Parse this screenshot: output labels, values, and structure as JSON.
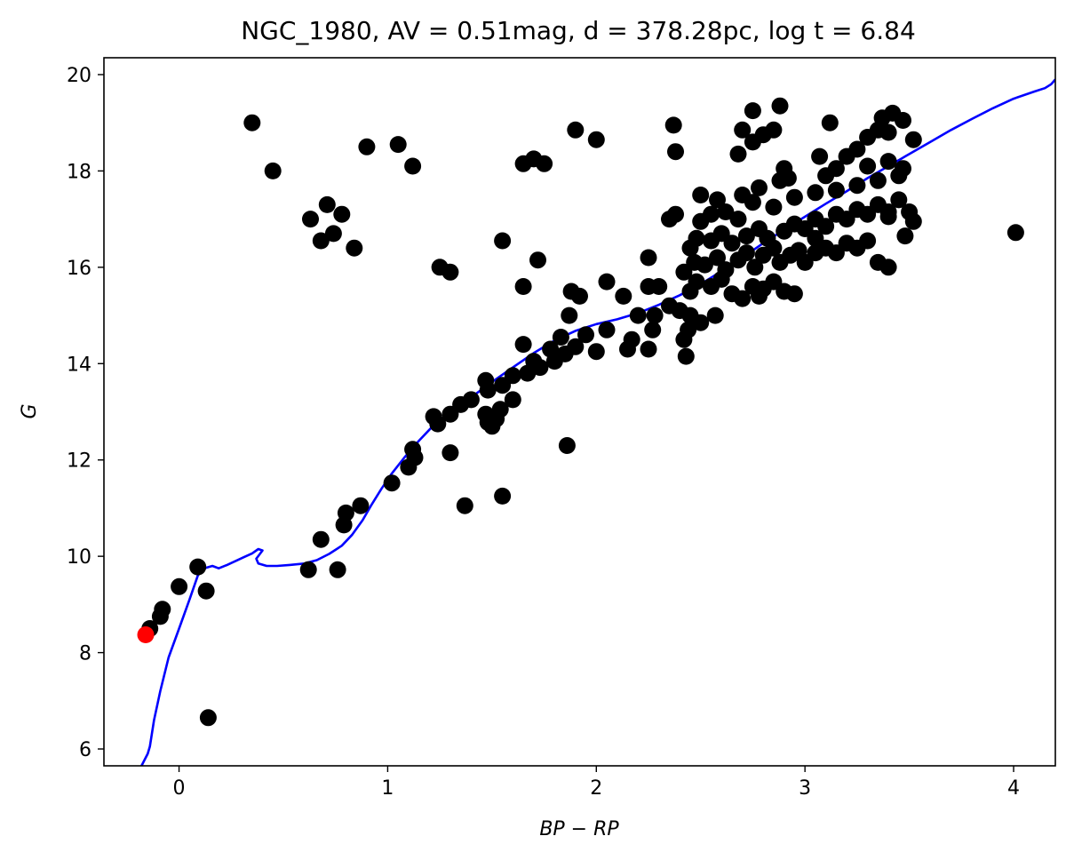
{
  "chart_data": {
    "type": "scatter",
    "title": "NGC_1980, AV = 0.51mag, d = 378.28pc, log t = 6.84",
    "xlabel": "BP − RP",
    "ylabel": "G",
    "xlim": [
      -0.36,
      4.2
    ],
    "ylim": [
      20.35,
      5.65
    ],
    "y_inverted": true,
    "grid": false,
    "x_ticks": [
      0,
      1,
      2,
      3,
      4
    ],
    "x_tick_labels": [
      "0",
      "1",
      "2",
      "3",
      "4"
    ],
    "y_ticks": [
      6,
      8,
      10,
      12,
      14,
      16,
      18,
      20
    ],
    "y_tick_labels": [
      "6",
      "8",
      "10",
      "12",
      "14",
      "16",
      "18",
      "20"
    ],
    "colors": {
      "members": "#000000",
      "highlight": "#ff0000",
      "isochrone": "#0000ff"
    },
    "highlight_point": {
      "x": -0.16,
      "y": 8.37
    },
    "isochrone": {
      "x": [
        -0.18,
        -0.15,
        -0.14,
        -0.12,
        -0.09,
        -0.05,
        0.0,
        0.05,
        0.09,
        0.12,
        0.16,
        0.19,
        0.23,
        0.27,
        0.31,
        0.35,
        0.38,
        0.4,
        0.37,
        0.38,
        0.42,
        0.47,
        0.53,
        0.6,
        0.66,
        0.72,
        0.78,
        0.83,
        0.88,
        0.92,
        0.97,
        1.02,
        1.08,
        1.15,
        1.22,
        1.3,
        1.4,
        1.5,
        1.6,
        1.7,
        1.8,
        1.9,
        2.0,
        2.1,
        2.2,
        2.3,
        2.4,
        2.5,
        2.6,
        2.7,
        2.8,
        2.9,
        3.0,
        3.1,
        3.2,
        3.3,
        3.4,
        3.5,
        3.6,
        3.7,
        3.8,
        3.9,
        4.0,
        4.1,
        4.15,
        4.18,
        4.19,
        4.2
      ],
      "y": [
        5.65,
        5.9,
        6.05,
        6.6,
        7.2,
        7.9,
        8.5,
        9.1,
        9.6,
        9.75,
        9.8,
        9.75,
        9.82,
        9.9,
        9.98,
        10.06,
        10.15,
        10.12,
        9.95,
        9.85,
        9.8,
        9.8,
        9.82,
        9.85,
        9.92,
        10.05,
        10.22,
        10.45,
        10.75,
        11.05,
        11.4,
        11.72,
        12.05,
        12.4,
        12.72,
        13.0,
        13.3,
        13.62,
        13.92,
        14.22,
        14.48,
        14.68,
        14.82,
        14.92,
        15.05,
        15.22,
        15.42,
        15.65,
        15.92,
        16.2,
        16.5,
        16.78,
        17.05,
        17.32,
        17.58,
        17.85,
        18.1,
        18.35,
        18.6,
        18.85,
        19.08,
        19.3,
        19.5,
        19.65,
        19.72,
        19.8,
        19.85,
        19.9
      ]
    },
    "points": [
      [
        0.14,
        6.65
      ],
      [
        -0.14,
        8.5
      ],
      [
        -0.09,
        8.75
      ],
      [
        -0.08,
        8.9
      ],
      [
        0.0,
        9.37
      ],
      [
        0.09,
        9.78
      ],
      [
        0.13,
        9.28
      ],
      [
        0.62,
        9.72
      ],
      [
        0.76,
        9.72
      ],
      [
        0.68,
        10.35
      ],
      [
        0.79,
        10.65
      ],
      [
        0.8,
        10.9
      ],
      [
        0.87,
        11.05
      ],
      [
        1.02,
        11.52
      ],
      [
        1.1,
        11.85
      ],
      [
        1.13,
        12.05
      ],
      [
        1.12,
        12.22
      ],
      [
        1.3,
        12.15
      ],
      [
        1.37,
        11.05
      ],
      [
        1.55,
        11.25
      ],
      [
        1.86,
        12.3
      ],
      [
        1.24,
        12.75
      ],
      [
        1.22,
        12.9
      ],
      [
        1.3,
        12.95
      ],
      [
        1.35,
        13.15
      ],
      [
        1.4,
        13.25
      ],
      [
        1.48,
        12.78
      ],
      [
        1.5,
        12.7
      ],
      [
        1.52,
        12.85
      ],
      [
        1.47,
        12.95
      ],
      [
        1.54,
        13.05
      ],
      [
        1.6,
        13.25
      ],
      [
        1.48,
        13.45
      ],
      [
        1.47,
        13.65
      ],
      [
        1.55,
        13.55
      ],
      [
        1.6,
        13.75
      ],
      [
        1.67,
        13.8
      ],
      [
        1.73,
        13.92
      ],
      [
        1.7,
        14.05
      ],
      [
        1.65,
        14.4
      ],
      [
        1.8,
        14.05
      ],
      [
        1.85,
        14.2
      ],
      [
        1.78,
        14.3
      ],
      [
        1.9,
        14.35
      ],
      [
        1.83,
        14.55
      ],
      [
        1.95,
        14.6
      ],
      [
        2.05,
        14.7
      ],
      [
        2.0,
        14.25
      ],
      [
        1.87,
        15.0
      ],
      [
        1.92,
        15.4
      ],
      [
        1.88,
        15.5
      ],
      [
        1.65,
        15.6
      ],
      [
        2.15,
        14.3
      ],
      [
        2.17,
        14.5
      ],
      [
        2.25,
        14.3
      ],
      [
        2.27,
        14.7
      ],
      [
        2.2,
        15.0
      ],
      [
        2.28,
        15.0
      ],
      [
        2.35,
        15.2
      ],
      [
        2.4,
        15.1
      ],
      [
        2.45,
        15.0
      ],
      [
        2.5,
        14.85
      ],
      [
        2.57,
        15.0
      ],
      [
        2.42,
        14.5
      ],
      [
        2.44,
        14.7
      ],
      [
        2.43,
        14.15
      ],
      [
        2.13,
        15.4
      ],
      [
        2.05,
        15.7
      ],
      [
        2.25,
        15.6
      ],
      [
        2.3,
        15.6
      ],
      [
        2.45,
        15.5
      ],
      [
        2.48,
        15.7
      ],
      [
        2.55,
        15.6
      ],
      [
        2.6,
        15.75
      ],
      [
        2.65,
        15.45
      ],
      [
        2.7,
        15.35
      ],
      [
        2.75,
        15.6
      ],
      [
        2.78,
        15.4
      ],
      [
        2.8,
        15.55
      ],
      [
        2.85,
        15.7
      ],
      [
        2.9,
        15.5
      ],
      [
        2.95,
        15.45
      ],
      [
        2.42,
        15.9
      ],
      [
        2.47,
        16.1
      ],
      [
        2.52,
        16.05
      ],
      [
        2.58,
        16.2
      ],
      [
        2.62,
        15.95
      ],
      [
        2.68,
        16.15
      ],
      [
        2.72,
        16.3
      ],
      [
        2.76,
        16.0
      ],
      [
        2.8,
        16.25
      ],
      [
        2.85,
        16.4
      ],
      [
        2.88,
        16.1
      ],
      [
        2.93,
        16.25
      ],
      [
        2.97,
        16.35
      ],
      [
        3.0,
        16.1
      ],
      [
        3.05,
        16.3
      ],
      [
        3.1,
        16.4
      ],
      [
        3.15,
        16.3
      ],
      [
        3.2,
        16.5
      ],
      [
        3.25,
        16.4
      ],
      [
        3.3,
        16.55
      ],
      [
        3.05,
        16.6
      ],
      [
        2.45,
        16.4
      ],
      [
        2.48,
        16.6
      ],
      [
        2.55,
        16.55
      ],
      [
        2.6,
        16.7
      ],
      [
        2.65,
        16.5
      ],
      [
        2.72,
        16.65
      ],
      [
        2.78,
        16.8
      ],
      [
        2.82,
        16.6
      ],
      [
        2.9,
        16.75
      ],
      [
        2.95,
        16.9
      ],
      [
        3.0,
        16.8
      ],
      [
        3.05,
        17.0
      ],
      [
        3.1,
        16.85
      ],
      [
        3.15,
        17.1
      ],
      [
        3.2,
        17.0
      ],
      [
        3.25,
        17.2
      ],
      [
        3.3,
        17.1
      ],
      [
        3.35,
        17.3
      ],
      [
        3.4,
        17.15
      ],
      [
        3.45,
        17.4
      ],
      [
        2.5,
        16.95
      ],
      [
        2.55,
        17.1
      ],
      [
        2.62,
        17.15
      ],
      [
        2.68,
        17.0
      ],
      [
        2.75,
        17.35
      ],
      [
        2.85,
        17.25
      ],
      [
        2.95,
        17.45
      ],
      [
        3.05,
        17.55
      ],
      [
        3.15,
        17.6
      ],
      [
        3.25,
        17.7
      ],
      [
        3.35,
        17.8
      ],
      [
        3.45,
        17.9
      ],
      [
        3.5,
        17.15
      ],
      [
        3.52,
        16.95
      ],
      [
        3.48,
        16.65
      ],
      [
        3.4,
        16.0
      ],
      [
        3.35,
        16.1
      ],
      [
        3.4,
        17.05
      ],
      [
        2.5,
        17.5
      ],
      [
        2.58,
        17.4
      ],
      [
        2.7,
        17.5
      ],
      [
        2.78,
        17.65
      ],
      [
        2.88,
        17.8
      ],
      [
        2.92,
        17.85
      ],
      [
        2.9,
        18.05
      ],
      [
        3.1,
        17.9
      ],
      [
        3.15,
        18.05
      ],
      [
        3.2,
        18.3
      ],
      [
        3.3,
        18.1
      ],
      [
        3.4,
        18.2
      ],
      [
        3.47,
        18.05
      ],
      [
        3.07,
        18.3
      ],
      [
        3.25,
        18.45
      ],
      [
        3.3,
        18.7
      ],
      [
        3.35,
        18.85
      ],
      [
        3.4,
        18.8
      ],
      [
        3.37,
        19.1
      ],
      [
        3.42,
        19.2
      ],
      [
        3.47,
        19.05
      ],
      [
        3.52,
        18.65
      ],
      [
        3.12,
        19.0
      ],
      [
        2.68,
        18.35
      ],
      [
        2.7,
        18.85
      ],
      [
        2.75,
        18.6
      ],
      [
        2.8,
        18.75
      ],
      [
        2.85,
        18.85
      ],
      [
        2.75,
        19.25
      ],
      [
        2.88,
        19.35
      ],
      [
        2.38,
        18.4
      ],
      [
        2.37,
        18.95
      ],
      [
        2.35,
        17.0
      ],
      [
        2.38,
        17.1
      ],
      [
        2.25,
        16.2
      ],
      [
        4.01,
        16.72
      ],
      [
        1.75,
        18.15
      ],
      [
        1.7,
        18.25
      ],
      [
        1.65,
        18.15
      ],
      [
        2.0,
        18.65
      ],
      [
        1.9,
        18.85
      ],
      [
        1.55,
        16.55
      ],
      [
        1.72,
        16.15
      ],
      [
        1.3,
        15.9
      ],
      [
        1.25,
        16.0
      ],
      [
        0.84,
        16.4
      ],
      [
        0.68,
        16.55
      ],
      [
        0.74,
        16.7
      ],
      [
        0.63,
        17.0
      ],
      [
        0.78,
        17.1
      ],
      [
        0.71,
        17.3
      ],
      [
        0.45,
        18.0
      ],
      [
        0.35,
        19.0
      ],
      [
        0.9,
        18.5
      ],
      [
        1.05,
        18.55
      ],
      [
        1.12,
        18.1
      ]
    ]
  }
}
